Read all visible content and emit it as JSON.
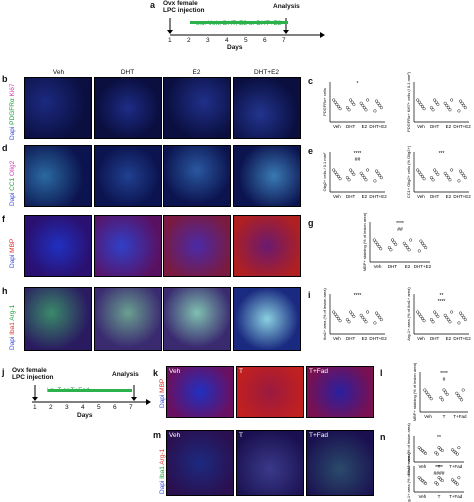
{
  "panel_letters": {
    "a": "a",
    "b": "b",
    "c": "c",
    "d": "d",
    "e": "e",
    "f": "f",
    "g": "g",
    "h": "h",
    "i": "i",
    "j": "j",
    "k": "k",
    "l": "l",
    "m": "m",
    "n": "n"
  },
  "timeline_a": {
    "title": "Ovx female\nLPC injection",
    "analysis": "Analysis",
    "treatment": "s.c. Veh, DHT, E2 or DHT+E2",
    "days_label": "Days",
    "days": [
      "1",
      "2",
      "3",
      "4",
      "5",
      "6",
      "7"
    ]
  },
  "timeline_j": {
    "title": "Ovx female\nLPC injection",
    "analysis": "Analysis",
    "treatment": "i.n. T or T+Fad",
    "days_label": "Days",
    "days": [
      "1",
      "2",
      "3",
      "4",
      "5",
      "6",
      "7"
    ]
  },
  "column_headers_main": [
    "Veh",
    "DHT",
    "E2",
    "DHT+E2"
  ],
  "column_headers_k": [
    "Veh",
    "T",
    "T+Fad"
  ],
  "row_labels": {
    "b": {
      "dapi": "Dapi",
      "a": "PDGFRα",
      "b": "Ki67"
    },
    "d": {
      "dapi": "Dapi",
      "a": "CC1",
      "b": "Olig2"
    },
    "f": {
      "dapi": "Dapi",
      "a": "MBP"
    },
    "h": {
      "dapi": "Dapi",
      "a": "Iba1",
      "b": "Arg-1"
    },
    "k": {
      "dapi": "Dapi",
      "a": "MBP"
    },
    "m": {
      "dapi": "Dapi",
      "a": "Iba1",
      "b": "Arg-1"
    }
  },
  "colors": {
    "dapi": "#3b4fd8",
    "green": "#2bb24c",
    "magenta": "#d43bb0",
    "red": "#e03030",
    "cyan": "#38c8c8"
  },
  "chart_data": [
    {
      "panel": "c1",
      "type": "scatter",
      "ylabel": "PDGFRα+ cells",
      "categories": [
        "Veh",
        "DHT",
        "E2",
        "DHT+E2"
      ],
      "sig": [
        "*"
      ]
    },
    {
      "panel": "c2",
      "type": "scatter",
      "ylabel": "PDGFRα+ Ki67+ cells (/ 0.1 mm²)",
      "categories": [
        "Veh",
        "DHT",
        "E2",
        "DHT+E2"
      ]
    },
    {
      "panel": "e1",
      "type": "scatter",
      "ylabel": "Olig2+ cells / 0.1 mm²",
      "categories": [
        "Veh",
        "DHT",
        "E2",
        "DHT+E2"
      ],
      "sig": [
        "****",
        "##"
      ]
    },
    {
      "panel": "e2",
      "type": "scatter",
      "ylabel": "CC1+ Olig2+ cells (% Olig2+)",
      "categories": [
        "Veh",
        "DHT",
        "E2",
        "DHT+E2"
      ],
      "sig": [
        "***"
      ]
    },
    {
      "panel": "g",
      "type": "scatter",
      "ylabel": "MBP+ staining (% of lesion area)",
      "categories": [
        "Veh",
        "DHT",
        "E2",
        "DHT+E2"
      ],
      "sig": [
        "****",
        "##"
      ]
    },
    {
      "panel": "i1",
      "type": "scatter",
      "ylabel": "Iba1+ area (% of lesion area)",
      "categories": [
        "Veh",
        "DHT",
        "E2",
        "DHT+E2"
      ],
      "sig": [
        "****"
      ]
    },
    {
      "panel": "i2",
      "type": "scatter",
      "ylabel": "Arg-1+ area (% of Iba1+ area)",
      "categories": [
        "Veh",
        "DHT",
        "E2",
        "DHT+E2"
      ],
      "sig": [
        "**",
        "****"
      ]
    },
    {
      "panel": "l",
      "type": "scatter",
      "ylabel": "MBP+ staining (% of lesion area)",
      "categories": [
        "Veh",
        "T",
        "T+Fad"
      ],
      "sig": [
        "****",
        "#"
      ]
    },
    {
      "panel": "n1",
      "type": "scatter",
      "ylabel": "Iba1+ area (% of lesion area)",
      "categories": [
        "Veh",
        "T",
        "T+Fad"
      ],
      "sig": [
        "**"
      ]
    },
    {
      "panel": "n2",
      "type": "scatter",
      "ylabel": "Arg-1+ area (% of Iba1+ area)",
      "categories": [
        "Veh",
        "T",
        "T+Fad"
      ],
      "sig": [
        "****",
        "####"
      ]
    }
  ]
}
